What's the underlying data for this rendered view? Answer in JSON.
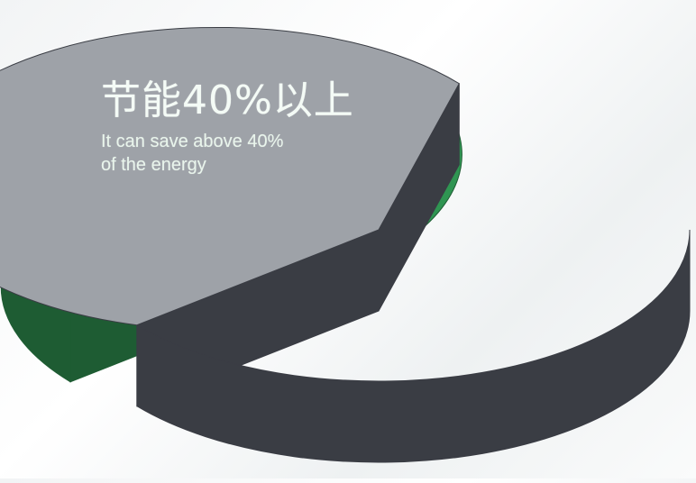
{
  "chart_data": {
    "type": "pie",
    "slices": [
      {
        "value": 40,
        "color": "#2f9552",
        "side_color": "#1e5c33",
        "exploded": true
      },
      {
        "value": 60,
        "color": "#9ea2a8",
        "side_color": "#3a3d44",
        "exploded": false
      }
    ],
    "annotation": {
      "headline": "节能40%以上",
      "line1": "It can save above 40%",
      "line2": "of the energy"
    }
  }
}
